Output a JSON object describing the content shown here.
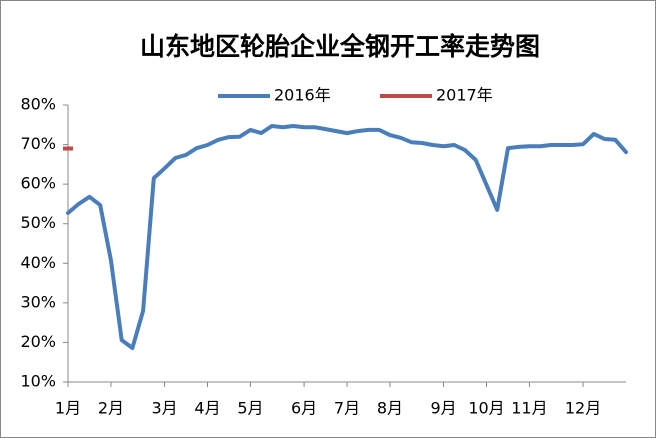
{
  "chart_data": {
    "type": "line",
    "title": "山东地区轮胎企业全钢开工率走势图",
    "categories": [
      "1月",
      null,
      null,
      null,
      "2月",
      null,
      null,
      null,
      null,
      "3月",
      null,
      null,
      null,
      "4月",
      null,
      null,
      null,
      "5月",
      null,
      null,
      null,
      null,
      "6月",
      null,
      null,
      null,
      "7月",
      null,
      null,
      null,
      "8月",
      null,
      null,
      null,
      null,
      "9月",
      null,
      null,
      null,
      "10月",
      null,
      null,
      null,
      "11月",
      null,
      null,
      null,
      null,
      "12月",
      null,
      null,
      null,
      null
    ],
    "series": [
      {
        "name": "2016年",
        "color": "#4a7ebb",
        "values": [
          52.7,
          55,
          56.8,
          54.7,
          40.8,
          20.6,
          18.6,
          28,
          61.5,
          64,
          66.6,
          67.4,
          69.1,
          69.9,
          71.2,
          71.9,
          72,
          73.7,
          72.9,
          74.7,
          74.4,
          74.7,
          74.4,
          74.4,
          73.9,
          73.4,
          72.9,
          73.4,
          73.7,
          73.7,
          72.4,
          71.7,
          70.6,
          70.4,
          69.9,
          69.6,
          69.9,
          68.6,
          66.1,
          59.8,
          53.5,
          69.1,
          69.4,
          69.6,
          69.6,
          69.9,
          69.9,
          69.9,
          70.1,
          72.7,
          71.4,
          71.2,
          68.1
        ]
      },
      {
        "name": "2017年",
        "color": "#be4b48",
        "values": [
          69,
          null,
          null,
          null,
          null,
          null,
          null,
          null,
          null,
          null,
          null,
          null,
          null,
          null,
          null,
          null,
          null,
          null,
          null,
          null,
          null,
          null,
          null,
          null,
          null,
          null,
          null,
          null,
          null,
          null,
          null,
          null,
          null,
          null,
          null,
          null,
          null,
          null,
          null,
          null,
          null,
          null,
          null,
          null,
          null,
          null,
          null,
          null,
          null,
          null,
          null,
          null,
          null
        ]
      }
    ],
    "ylim": [
      10,
      80
    ],
    "yticks": [
      {
        "value": 10,
        "label": "10%"
      },
      {
        "value": 20,
        "label": "20%"
      },
      {
        "value": 30,
        "label": "30%"
      },
      {
        "value": 40,
        "label": "40%"
      },
      {
        "value": 50,
        "label": "50%"
      },
      {
        "value": 60,
        "label": "60%"
      },
      {
        "value": 70,
        "label": "70%"
      },
      {
        "value": 80,
        "label": "80%"
      }
    ],
    "legend": "top"
  }
}
